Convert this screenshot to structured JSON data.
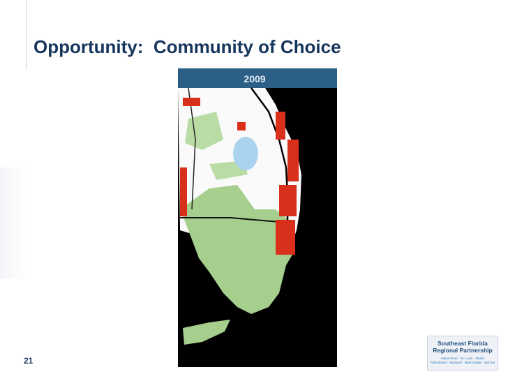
{
  "header": {
    "title": "Opportunity:  Community of Choice"
  },
  "map": {
    "label": "2009"
  },
  "footer": {
    "page_number": "21",
    "logo": {
      "title_lines": [
        "Southeast Florida",
        "Regional Partnership"
      ],
      "counties_lines": [
        "Indian River · St. Lucie · Martin",
        "Palm Beach · Broward · Miami-Dade · Monroe"
      ]
    }
  }
}
